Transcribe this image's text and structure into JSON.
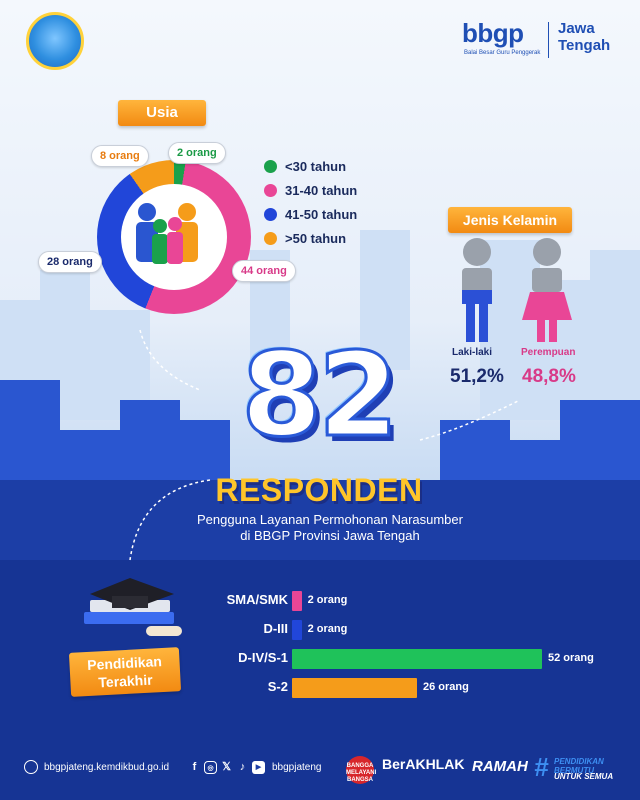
{
  "brand": {
    "logo_text": "bbgp",
    "subtitle": "Balai Besar Guru Penggerak",
    "region": "Jawa Tengah",
    "emblem_icon": "tut-wuri-handayani-emblem"
  },
  "age_section": {
    "title": "Usia",
    "legend": [
      {
        "label": "<30 tahun",
        "color": "#1aa14b"
      },
      {
        "label": "31-40 tahun",
        "color": "#e94696"
      },
      {
        "label": "41-50 tahun",
        "color": "#2146d9"
      },
      {
        "label": ">50 tahun",
        "color": "#f59c1a"
      }
    ],
    "callouts": {
      "lt30": "2 orang",
      "r31_40": "44 orang",
      "r41_50": "28 orang",
      "gt50": "8 orang"
    }
  },
  "gender_section": {
    "title": "Jenis Kelamin",
    "male_label": "Laki-laki",
    "female_label": "Perempuan",
    "male_pct": "51,2%",
    "female_pct": "48,8%"
  },
  "headline": {
    "count": "82",
    "label": "RESPONDEN",
    "subtitle_line1": "Pengguna Layanan Permohonan Narasumber",
    "subtitle_line2": "di BBGP Provinsi Jawa Tengah"
  },
  "education_section": {
    "title_line1": "Pendidikan",
    "title_line2": "Terakhir"
  },
  "footer": {
    "website": "bbgpjateng.kemdikbud.go.id",
    "handle": "bbgpjateng",
    "berakhlak": "BerAKHLAK",
    "ramah": "RAMAH",
    "hashtag": "#",
    "pend_bermutu": "PENDIDIKAN BERMUTU",
    "untuk_semua": "UNTUK SEMUA",
    "badge": "BANGGA MELAYANI BANGSA",
    "social_icons": [
      "facebook-icon",
      "instagram-icon",
      "x-icon",
      "tiktok-icon",
      "youtube-icon"
    ]
  },
  "chart_data": [
    {
      "type": "pie",
      "title": "Usia",
      "categories": [
        "<30 tahun",
        "31-40 tahun",
        "41-50 tahun",
        ">50 tahun"
      ],
      "values": [
        2,
        44,
        28,
        8
      ],
      "unit": "orang",
      "colors": [
        "#1aa14b",
        "#e94696",
        "#2146d9",
        "#f59c1a"
      ],
      "legend": "right"
    },
    {
      "type": "bar",
      "orientation": "horizontal",
      "title": "Pendidikan Terakhir",
      "categories": [
        "SMA/SMK",
        "D-III",
        "D-IV/S-1",
        "S-2"
      ],
      "values": [
        2,
        2,
        52,
        26
      ],
      "labels": [
        "2 orang",
        "2 orang",
        "52 orang",
        "26 orang"
      ],
      "colors": [
        "#e94696",
        "#2146d9",
        "#1fc25a",
        "#f59c1a"
      ],
      "xlim": [
        0,
        52
      ]
    }
  ]
}
